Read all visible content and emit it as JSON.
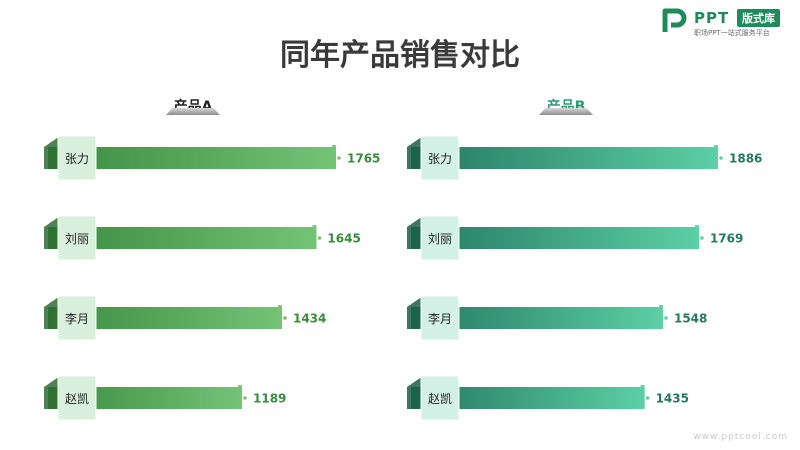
{
  "title": "同年产品销售对比",
  "logo": {
    "brand": "PPT",
    "badge": "版式库",
    "tagline": "职场PPT一站式服务平台"
  },
  "watermark": "www.pptcool.com",
  "chart_data": [
    {
      "type": "bar",
      "orientation": "horizontal",
      "title": "产品A",
      "categories": [
        "张力",
        "刘丽",
        "李月",
        "赵凯"
      ],
      "values": [
        1765,
        1645,
        1434,
        1189
      ],
      "colors": {
        "bar_start": "#3a8a40",
        "bar_end": "#74c476",
        "label": "#3a8a40",
        "tab": "#d9f0dc",
        "tab_fold": "#2e6e33"
      }
    },
    {
      "type": "bar",
      "orientation": "horizontal",
      "title": "产品B",
      "categories": [
        "张力",
        "刘丽",
        "李月",
        "赵凯"
      ],
      "values": [
        1886,
        1769,
        1548,
        1435
      ],
      "colors": {
        "bar_start": "#24785e",
        "bar_end": "#5ccfa6",
        "label": "#24785e",
        "tab": "#d3f1e6",
        "tab_fold": "#1c5e49"
      }
    }
  ]
}
